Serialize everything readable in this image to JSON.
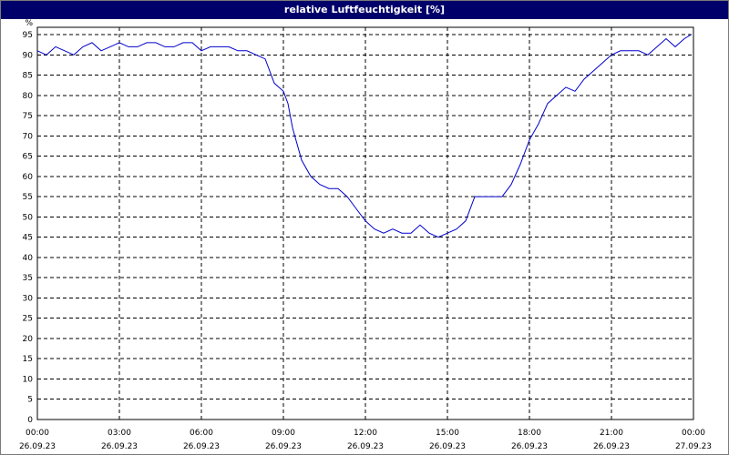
{
  "window": {
    "title": "relative Luftfeuchtigkeit [%]"
  },
  "chart_data": {
    "type": "line",
    "title": "relative Luftfeuchtigkeit [%]",
    "y_unit_label": "%",
    "ylim": [
      0,
      95
    ],
    "y_ticks": [
      0,
      5,
      10,
      15,
      20,
      25,
      30,
      35,
      40,
      45,
      50,
      55,
      60,
      65,
      70,
      75,
      80,
      85,
      90,
      95
    ],
    "xlim": [
      "26.09.23 00:00",
      "27.09.23 00:00"
    ],
    "x_ticks": [
      {
        "time": "00:00",
        "date": "26.09.23"
      },
      {
        "time": "03:00",
        "date": "26.09.23"
      },
      {
        "time": "06:00",
        "date": "26.09.23"
      },
      {
        "time": "09:00",
        "date": "26.09.23"
      },
      {
        "time": "12:00",
        "date": "26.09.23"
      },
      {
        "time": "15:00",
        "date": "26.09.23"
      },
      {
        "time": "18:00",
        "date": "26.09.23"
      },
      {
        "time": "21:00",
        "date": "26.09.23"
      },
      {
        "time": "00:00",
        "date": "27.09.23"
      }
    ],
    "grid": true,
    "series": [
      {
        "color": "#0000cc",
        "x": [
          "00:00",
          "00:20",
          "00:40",
          "01:00",
          "01:20",
          "01:40",
          "02:00",
          "02:20",
          "02:40",
          "03:00",
          "03:20",
          "03:40",
          "04:00",
          "04:20",
          "04:40",
          "05:00",
          "05:20",
          "05:40",
          "06:00",
          "06:20",
          "06:40",
          "07:00",
          "07:20",
          "07:40",
          "08:00",
          "08:20",
          "08:40",
          "09:00",
          "09:10",
          "09:20",
          "09:40",
          "10:00",
          "10:20",
          "10:40",
          "11:00",
          "11:20",
          "11:40",
          "12:00",
          "12:20",
          "12:40",
          "13:00",
          "13:20",
          "13:40",
          "14:00",
          "14:20",
          "14:40",
          "15:00",
          "15:20",
          "15:40",
          "16:00",
          "16:20",
          "16:40",
          "17:00",
          "17:20",
          "17:40",
          "18:00",
          "18:20",
          "18:40",
          "19:00",
          "19:20",
          "19:40",
          "20:00",
          "20:20",
          "20:40",
          "21:00",
          "21:20",
          "21:40",
          "22:00",
          "22:20",
          "22:40",
          "23:00",
          "23:20",
          "23:40",
          "23:55"
        ],
        "values": [
          91,
          90,
          92,
          91,
          90,
          92,
          93,
          91,
          92,
          93,
          92,
          92,
          93,
          93,
          92,
          92,
          93,
          93,
          91,
          92,
          92,
          92,
          91,
          91,
          90,
          89,
          83,
          81,
          78,
          72,
          64,
          60,
          58,
          57,
          57,
          55,
          52,
          49,
          47,
          46,
          47,
          46,
          46,
          48,
          46,
          45,
          46,
          47,
          49,
          55,
          55,
          55,
          55,
          58,
          63,
          69,
          73,
          78,
          80,
          82,
          81,
          84,
          86,
          88,
          90,
          91,
          91,
          91,
          90,
          92,
          94,
          92,
          94,
          95
        ]
      }
    ]
  }
}
